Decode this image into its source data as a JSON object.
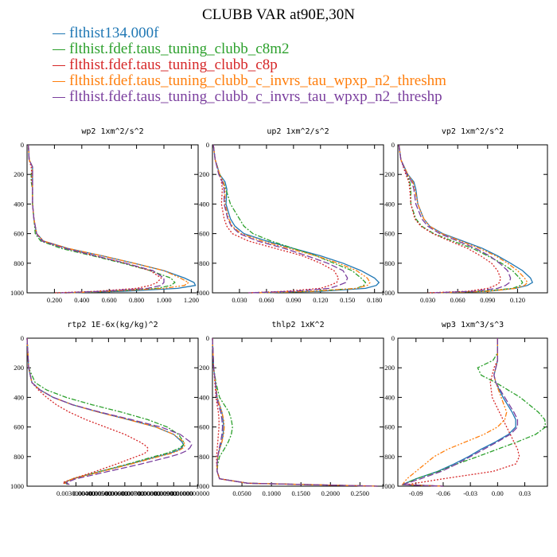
{
  "title": "CLUBB VAR at90E,30N",
  "legend": [
    {
      "label": "flthist134.000f",
      "color": "#1f77b4"
    },
    {
      "label": "flthist.fdef.taus_tuning_clubb_c8m2",
      "color": "#2ca02c"
    },
    {
      "label": "flthist.fdef.taus_tuning_clubb_c8p",
      "color": "#d62728"
    },
    {
      "label": "flthist.fdef.taus_tuning_clubb_c_invrs_tau_wpxp_n2_threshm",
      "color": "#ff7f0e"
    },
    {
      "label": "flthist.fdef.taus_tuning_clubb_c_invrs_tau_wpxp_n2_threshp",
      "color": "#7b3f9e"
    }
  ],
  "chart_data": [
    {
      "type": "line",
      "title": "wp2  1xm^2/s^2",
      "xlim": [
        0,
        1.25
      ],
      "ylim": [
        1000,
        0
      ],
      "xticks": [
        0.2,
        0.4,
        0.6,
        0.8,
        1.0,
        1.2
      ],
      "xticklabels": [
        "0.200",
        "0.400",
        "0.600",
        "0.800",
        "1.000",
        "1.200"
      ],
      "yticks": [
        0,
        200,
        400,
        600,
        800,
        1000
      ],
      "y": [
        0,
        100,
        150,
        200,
        250,
        300,
        400,
        500,
        600,
        650,
        700,
        750,
        800,
        850,
        900,
        930,
        950,
        970,
        990,
        1000
      ],
      "series": [
        {
          "values": [
            0.01,
            0.015,
            0.04,
            0.04,
            0.04,
            0.04,
            0.04,
            0.05,
            0.07,
            0.12,
            0.3,
            0.55,
            0.78,
            1.0,
            1.15,
            1.22,
            1.23,
            1.1,
            0.7,
            0.3
          ]
        },
        {
          "values": [
            0.01,
            0.015,
            0.04,
            0.03,
            0.03,
            0.04,
            0.04,
            0.05,
            0.06,
            0.1,
            0.25,
            0.48,
            0.7,
            0.9,
            1.05,
            1.08,
            1.05,
            0.95,
            0.6,
            0.3
          ]
        },
        {
          "values": [
            0.01,
            0.015,
            0.03,
            0.035,
            0.035,
            0.04,
            0.04,
            0.05,
            0.07,
            0.12,
            0.28,
            0.5,
            0.72,
            0.9,
            0.98,
            0.95,
            0.9,
            0.8,
            0.5,
            0.2
          ]
        },
        {
          "values": [
            0.01,
            0.015,
            0.04,
            0.04,
            0.04,
            0.04,
            0.04,
            0.05,
            0.07,
            0.12,
            0.3,
            0.55,
            0.78,
            1.0,
            1.12,
            1.18,
            1.15,
            1.0,
            0.6,
            0.3
          ]
        },
        {
          "values": [
            0.01,
            0.015,
            0.04,
            0.04,
            0.04,
            0.04,
            0.04,
            0.05,
            0.07,
            0.11,
            0.28,
            0.5,
            0.72,
            0.92,
            1.0,
            1.0,
            0.98,
            0.88,
            0.55,
            0.25
          ]
        }
      ]
    },
    {
      "type": "line",
      "title": "up2  1xm^2/s^2",
      "xlim": [
        0,
        0.19
      ],
      "ylim": [
        1000,
        0
      ],
      "xticks": [
        0.03,
        0.06,
        0.09,
        0.12,
        0.15,
        0.18
      ],
      "xticklabels": [
        "0.030",
        "0.060",
        "0.090",
        "0.120",
        "0.150",
        "0.180"
      ],
      "yticks": [
        0,
        200,
        400,
        600,
        800,
        1000
      ],
      "y": [
        0,
        100,
        200,
        250,
        300,
        400,
        500,
        550,
        600,
        650,
        700,
        750,
        800,
        850,
        900,
        930,
        950,
        970,
        990,
        1000
      ],
      "series": [
        {
          "values": [
            0.001,
            0.003,
            0.008,
            0.014,
            0.016,
            0.015,
            0.02,
            0.025,
            0.035,
            0.06,
            0.09,
            0.12,
            0.145,
            0.165,
            0.18,
            0.185,
            0.182,
            0.17,
            0.12,
            0.05
          ]
        },
        {
          "values": [
            0.001,
            0.003,
            0.008,
            0.012,
            0.015,
            0.02,
            0.03,
            0.035,
            0.045,
            0.065,
            0.09,
            0.115,
            0.135,
            0.155,
            0.165,
            0.17,
            0.168,
            0.16,
            0.11,
            0.05
          ]
        },
        {
          "values": [
            0.001,
            0.003,
            0.008,
            0.01,
            0.011,
            0.01,
            0.013,
            0.016,
            0.022,
            0.04,
            0.07,
            0.1,
            0.12,
            0.135,
            0.14,
            0.138,
            0.13,
            0.12,
            0.08,
            0.04
          ]
        },
        {
          "values": [
            0.001,
            0.003,
            0.008,
            0.012,
            0.014,
            0.014,
            0.018,
            0.022,
            0.032,
            0.055,
            0.085,
            0.115,
            0.14,
            0.16,
            0.172,
            0.175,
            0.172,
            0.16,
            0.11,
            0.05
          ]
        },
        {
          "values": [
            0.001,
            0.003,
            0.007,
            0.011,
            0.013,
            0.013,
            0.017,
            0.021,
            0.03,
            0.05,
            0.08,
            0.105,
            0.128,
            0.145,
            0.15,
            0.148,
            0.14,
            0.13,
            0.09,
            0.04
          ]
        }
      ]
    },
    {
      "type": "line",
      "title": "vp2  1xm^2/s^2",
      "xlim": [
        0,
        0.15
      ],
      "ylim": [
        1000,
        0
      ],
      "xticks": [
        0.03,
        0.06,
        0.09,
        0.12
      ],
      "xticklabels": [
        "0.030",
        "0.060",
        "0.090",
        "0.120"
      ],
      "yticks": [
        0,
        200,
        400,
        600,
        800,
        1000
      ],
      "y": [
        0,
        100,
        200,
        250,
        300,
        400,
        500,
        550,
        600,
        650,
        700,
        750,
        800,
        850,
        900,
        930,
        950,
        970,
        990,
        1000
      ],
      "series": [
        {
          "values": [
            0.001,
            0.003,
            0.01,
            0.016,
            0.018,
            0.02,
            0.026,
            0.032,
            0.045,
            0.065,
            0.085,
            0.1,
            0.113,
            0.125,
            0.133,
            0.135,
            0.13,
            0.118,
            0.09,
            0.04
          ]
        },
        {
          "values": [
            0.001,
            0.003,
            0.009,
            0.012,
            0.013,
            0.013,
            0.018,
            0.024,
            0.036,
            0.055,
            0.075,
            0.09,
            0.104,
            0.115,
            0.122,
            0.125,
            0.123,
            0.115,
            0.085,
            0.04
          ]
        },
        {
          "values": [
            0.001,
            0.003,
            0.008,
            0.011,
            0.012,
            0.013,
            0.017,
            0.023,
            0.035,
            0.052,
            0.07,
            0.083,
            0.094,
            0.1,
            0.103,
            0.102,
            0.098,
            0.09,
            0.07,
            0.03
          ]
        },
        {
          "values": [
            0.001,
            0.003,
            0.01,
            0.015,
            0.017,
            0.02,
            0.026,
            0.032,
            0.044,
            0.063,
            0.082,
            0.098,
            0.11,
            0.12,
            0.127,
            0.13,
            0.127,
            0.118,
            0.09,
            0.04
          ]
        },
        {
          "values": [
            0.001,
            0.003,
            0.009,
            0.014,
            0.016,
            0.018,
            0.024,
            0.03,
            0.042,
            0.06,
            0.078,
            0.092,
            0.102,
            0.11,
            0.113,
            0.112,
            0.108,
            0.1,
            0.075,
            0.035
          ]
        }
      ]
    },
    {
      "type": "line",
      "title": "rtp2  1E-6x(kg/kg)^2",
      "xlim": [
        0,
        0.0105
      ],
      "ylim": [
        1000,
        0
      ],
      "xticks": [
        0.003,
        0.004,
        0.005,
        0.006,
        0.007,
        0.008,
        0.009,
        0.01
      ],
      "xticklabels": [
        "0.0030000000",
        "0.0040000000",
        "0.0050000000",
        "0.0060000000",
        "0.0070000000",
        "0.0080000000",
        "0.0090000000",
        "0.0100000000"
      ],
      "yticks": [
        0,
        200,
        400,
        600,
        800,
        1000
      ],
      "y": [
        0,
        200,
        300,
        350,
        400,
        450,
        500,
        550,
        600,
        650,
        700,
        720,
        740,
        760,
        780,
        800,
        850,
        900,
        950,
        975,
        990
      ],
      "series": [
        {
          "values": [
            0.0,
            0.0001,
            0.0003,
            0.0008,
            0.0016,
            0.0028,
            0.0044,
            0.0062,
            0.0079,
            0.009,
            0.0095,
            0.0096,
            0.0095,
            0.0092,
            0.0087,
            0.008,
            0.0063,
            0.0045,
            0.0028,
            0.0023,
            0.0025
          ]
        },
        {
          "values": [
            0.0,
            0.0001,
            0.0005,
            0.0012,
            0.0024,
            0.004,
            0.0058,
            0.0074,
            0.0086,
            0.0093,
            0.0096,
            0.0096,
            0.0094,
            0.009,
            0.0085,
            0.0078,
            0.0062,
            0.0045,
            0.0028,
            0.0023,
            0.0025
          ]
        },
        {
          "values": [
            0.0,
            0.0001,
            0.0003,
            0.0007,
            0.0012,
            0.0018,
            0.0026,
            0.0036,
            0.0048,
            0.006,
            0.0069,
            0.0072,
            0.0074,
            0.0074,
            0.0072,
            0.0067,
            0.0055,
            0.0042,
            0.0028,
            0.0022,
            0.0024
          ]
        },
        {
          "values": [
            0.0,
            0.0001,
            0.0003,
            0.0008,
            0.0016,
            0.0028,
            0.0044,
            0.0062,
            0.0079,
            0.009,
            0.0096,
            0.0097,
            0.0096,
            0.0093,
            0.0088,
            0.0081,
            0.0064,
            0.0046,
            0.0028,
            0.0023,
            0.0025
          ]
        },
        {
          "values": [
            0.0,
            0.0001,
            0.0003,
            0.0008,
            0.0016,
            0.0028,
            0.0045,
            0.0064,
            0.0082,
            0.0094,
            0.01,
            0.0101,
            0.01,
            0.0098,
            0.0094,
            0.0088,
            0.007,
            0.005,
            0.003,
            0.0024,
            0.0026
          ]
        }
      ]
    },
    {
      "type": "line",
      "title": "thlp2  1xK^2",
      "xlim": [
        0,
        0.29
      ],
      "ylim": [
        1000,
        0
      ],
      "xticks": [
        0.05,
        0.1,
        0.15,
        0.2,
        0.25
      ],
      "xticklabels": [
        "0.0500",
        "0.1000",
        "0.1500",
        "0.2000",
        "0.2500"
      ],
      "yticks": [
        0,
        200,
        400,
        600,
        800,
        1000
      ],
      "y": [
        0,
        200,
        300,
        400,
        450,
        500,
        550,
        600,
        650,
        700,
        750,
        800,
        850,
        900,
        950,
        980,
        1000
      ],
      "series": [
        {
          "values": [
            0.0,
            0.002,
            0.005,
            0.008,
            0.012,
            0.016,
            0.018,
            0.019,
            0.018,
            0.016,
            0.012,
            0.009,
            0.008,
            0.008,
            0.012,
            0.06,
            0.28
          ]
        },
        {
          "values": [
            0.0,
            0.002,
            0.006,
            0.012,
            0.02,
            0.028,
            0.032,
            0.034,
            0.032,
            0.027,
            0.02,
            0.012,
            0.009,
            0.008,
            0.012,
            0.06,
            0.28
          ]
        },
        {
          "values": [
            0.0,
            0.002,
            0.004,
            0.006,
            0.008,
            0.01,
            0.011,
            0.011,
            0.01,
            0.009,
            0.008,
            0.007,
            0.007,
            0.008,
            0.012,
            0.06,
            0.28
          ]
        },
        {
          "values": [
            0.0,
            0.002,
            0.005,
            0.008,
            0.012,
            0.016,
            0.019,
            0.02,
            0.019,
            0.016,
            0.012,
            0.009,
            0.008,
            0.008,
            0.012,
            0.06,
            0.28
          ]
        },
        {
          "values": [
            0.0,
            0.002,
            0.005,
            0.007,
            0.01,
            0.014,
            0.016,
            0.017,
            0.016,
            0.014,
            0.011,
            0.009,
            0.008,
            0.008,
            0.012,
            0.06,
            0.28
          ]
        }
      ]
    },
    {
      "type": "line",
      "title": "wp3  1xm^3/s^3",
      "xlim": [
        -0.11,
        0.055
      ],
      "ylim": [
        1000,
        0
      ],
      "xticks": [
        -0.09,
        -0.06,
        -0.03,
        0.0,
        0.03
      ],
      "xticklabels": [
        "-0.09",
        "-0.06",
        "-0.03",
        "0.00",
        "0.03"
      ],
      "yticks": [
        0,
        200,
        400,
        600,
        800,
        1000
      ],
      "y": [
        0,
        100,
        150,
        200,
        250,
        300,
        400,
        500,
        550,
        600,
        650,
        700,
        750,
        800,
        850,
        900,
        950,
        990,
        1000
      ],
      "series": [
        {
          "values": [
            0.0,
            0.0,
            0.0,
            -0.002,
            -0.004,
            -0.002,
            0.006,
            0.016,
            0.02,
            0.02,
            0.012,
            -0.002,
            -0.018,
            -0.032,
            -0.048,
            -0.066,
            -0.09,
            -0.105,
            -0.06
          ]
        },
        {
          "values": [
            0.0,
            0.0,
            -0.005,
            -0.022,
            -0.018,
            -0.002,
            0.025,
            0.045,
            0.052,
            0.053,
            0.042,
            0.022,
            0.0,
            -0.022,
            -0.045,
            -0.065,
            -0.09,
            -0.105,
            -0.06
          ]
        },
        {
          "values": [
            0.0,
            0.0,
            0.0,
            -0.004,
            -0.006,
            -0.008,
            -0.006,
            0.002,
            0.006,
            0.01,
            0.014,
            0.018,
            0.022,
            0.024,
            0.02,
            -0.005,
            -0.06,
            -0.1,
            -0.06
          ]
        },
        {
          "values": [
            0.0,
            0.0,
            0.0,
            -0.002,
            -0.004,
            -0.002,
            0.004,
            0.01,
            0.008,
            0.0,
            -0.015,
            -0.035,
            -0.055,
            -0.07,
            -0.08,
            -0.09,
            -0.1,
            -0.105,
            -0.06
          ]
        },
        {
          "values": [
            0.0,
            0.0,
            0.0,
            -0.002,
            -0.004,
            -0.002,
            0.008,
            0.018,
            0.022,
            0.022,
            0.014,
            0.0,
            -0.015,
            -0.03,
            -0.045,
            -0.062,
            -0.085,
            -0.105,
            -0.06
          ]
        }
      ]
    }
  ]
}
